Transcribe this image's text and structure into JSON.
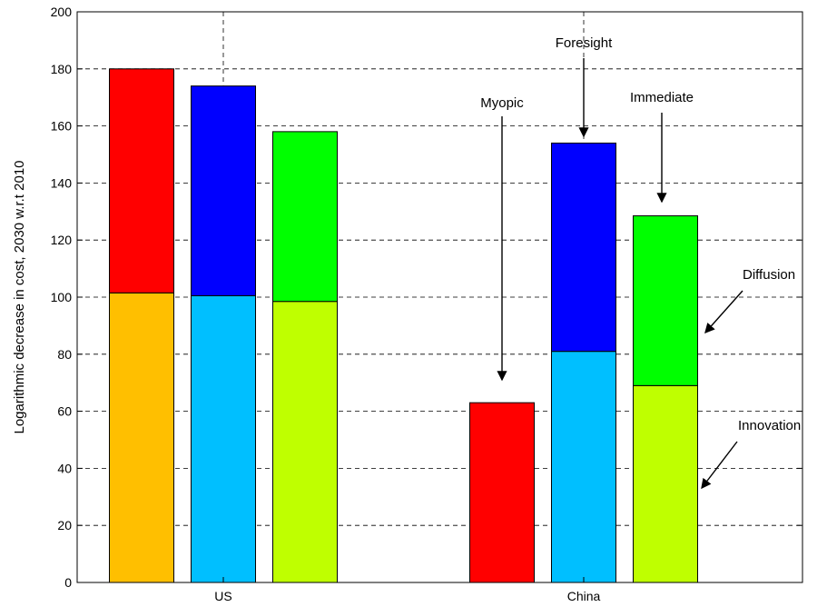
{
  "chart_data": {
    "type": "bar",
    "stacked": true,
    "categories": [
      "US",
      "China"
    ],
    "ylabel": "Logarithmic decrease in cost, 2030 w.r.t 2010",
    "xlabel": "",
    "title": "",
    "ylim": [
      0,
      200
    ],
    "yticks": [
      0,
      20,
      40,
      60,
      80,
      100,
      120,
      140,
      160,
      180,
      200
    ],
    "grid": true,
    "groups": [
      {
        "category": "US",
        "bars": [
          {
            "segments": [
              {
                "value": 101.5,
                "color": "#FFBF00"
              },
              {
                "value": 78.5,
                "color": "#FF0000"
              }
            ]
          },
          {
            "segments": [
              {
                "value": 100.5,
                "color": "#00BFFF"
              },
              {
                "value": 73.5,
                "color": "#0000FF"
              }
            ]
          },
          {
            "segments": [
              {
                "value": 98.5,
                "color": "#BFFF00"
              },
              {
                "value": 59.5,
                "color": "#00FF00"
              }
            ]
          }
        ]
      },
      {
        "category": "China",
        "bars": [
          {
            "segments": [
              {
                "value": 63,
                "color": "#FF0000"
              }
            ]
          },
          {
            "segments": [
              {
                "value": 81,
                "color": "#00BFFF"
              },
              {
                "value": 73,
                "color": "#0000FF"
              }
            ]
          },
          {
            "segments": [
              {
                "value": 69,
                "color": "#BFFF00"
              },
              {
                "value": 59.5,
                "color": "#00FF00"
              }
            ]
          }
        ]
      }
    ],
    "annotations": [
      {
        "text": "Myopic"
      },
      {
        "text": "Foresight"
      },
      {
        "text": "Immediate"
      },
      {
        "text": "Diffusion"
      },
      {
        "text": "Innovation"
      }
    ]
  }
}
